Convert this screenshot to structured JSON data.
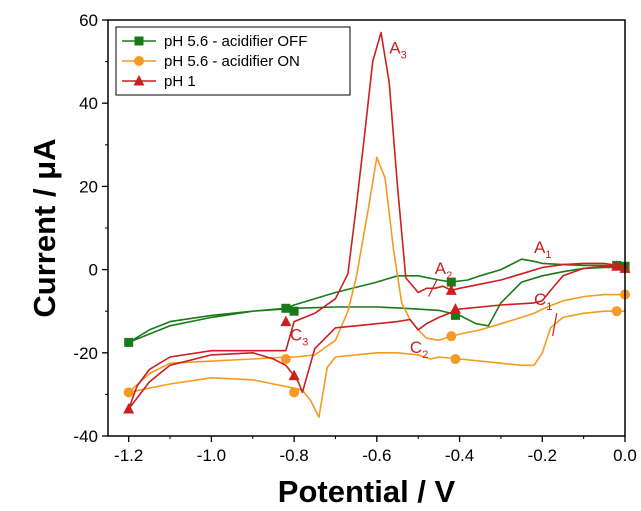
{
  "chart_data": {
    "type": "line",
    "title": "",
    "xlabel": "Potential / V",
    "ylabel": "Current / μA",
    "xlim": [
      -1.25,
      0.0
    ],
    "ylim": [
      -40,
      60
    ],
    "x_ticks": [
      -1.2,
      -1.0,
      -0.8,
      -0.6,
      -0.4,
      -0.2,
      0.0
    ],
    "x_tick_labels": [
      "-1.2",
      "-1.0",
      "-0.8",
      "-0.6",
      "-0.4",
      "-0.2",
      "0.0"
    ],
    "y_ticks": [
      -40,
      -20,
      0,
      20,
      40,
      60
    ],
    "y_tick_labels": [
      "-40",
      "-20",
      "0",
      "20",
      "40",
      "60"
    ],
    "grid": false,
    "legend_position": "top-left",
    "series": [
      {
        "name": "pH 5.6 - acidifier OFF",
        "color": "#1a7a1a",
        "marker": "square",
        "x": [
          0.0,
          -0.05,
          -0.1,
          -0.15,
          -0.2,
          -0.25,
          -0.3,
          -0.33,
          -0.36,
          -0.4,
          -0.45,
          -0.5,
          -0.55,
          -0.6,
          -0.7,
          -0.8,
          -0.9,
          -1.0,
          -1.1,
          -1.2,
          -1.15,
          -1.1,
          -1.0,
          -0.9,
          -0.82,
          -0.8,
          -0.7,
          -0.6,
          -0.55,
          -0.5,
          -0.45,
          -0.42,
          -0.38,
          -0.35,
          -0.3,
          -0.27,
          -0.25,
          -0.22,
          -0.2,
          -0.15,
          -0.1,
          -0.05,
          -0.02,
          0.0
        ],
        "y": [
          0.5,
          0.5,
          0.3,
          -0.5,
          -1.5,
          -3,
          -8,
          -13.5,
          -13,
          -11,
          -9.8,
          -9.5,
          -9.2,
          -9.0,
          -9.0,
          -9.3,
          -10,
          -11.5,
          -13.5,
          -17.5,
          -14.5,
          -12.5,
          -11,
          -10,
          -9.3,
          -8.5,
          -5.5,
          -3,
          -1.5,
          -1.5,
          -2.5,
          -3,
          -2.5,
          -1.5,
          0,
          1.5,
          2.5,
          2,
          1.5,
          1.2,
          1.0,
          1.0,
          0.8,
          0.8
        ],
        "markers_x": [
          -1.2,
          -0.82,
          -0.8,
          -0.41,
          -0.42,
          -0.02,
          0.0
        ],
        "markers_y": [
          -17.5,
          -9.3,
          -10,
          -11,
          -3,
          1,
          0.8
        ]
      },
      {
        "name": "pH 5.6 - acidifier ON",
        "color": "#f59a23",
        "marker": "circle",
        "x": [
          0.0,
          -0.05,
          -0.1,
          -0.15,
          -0.18,
          -0.2,
          -0.22,
          -0.25,
          -0.3,
          -0.4,
          -0.45,
          -0.47,
          -0.5,
          -0.55,
          -0.6,
          -0.65,
          -0.7,
          -0.72,
          -0.74,
          -0.76,
          -0.78,
          -0.8,
          -0.85,
          -0.9,
          -1.0,
          -1.1,
          -1.2,
          -1.15,
          -1.1,
          -1.0,
          -0.9,
          -0.82,
          -0.8,
          -0.75,
          -0.7,
          -0.67,
          -0.65,
          -0.62,
          -0.6,
          -0.58,
          -0.56,
          -0.54,
          -0.52,
          -0.5,
          -0.48,
          -0.45,
          -0.42,
          -0.4,
          -0.35,
          -0.3,
          -0.25,
          -0.22,
          -0.2,
          -0.15,
          -0.1,
          -0.05,
          -0.02,
          0.0
        ],
        "y": [
          -10,
          -10,
          -10.5,
          -11.5,
          -14,
          -20,
          -23,
          -23,
          -22.5,
          -21.5,
          -21,
          -21.5,
          -20.5,
          -20,
          -20,
          -20.5,
          -21,
          -23.5,
          -35.5,
          -31.5,
          -29,
          -28.5,
          -27.5,
          -26.5,
          -26,
          -27.5,
          -29.5,
          -25,
          -22.5,
          -22,
          -21.5,
          -21,
          -21,
          -20.5,
          -17,
          -10,
          -2,
          15,
          27,
          22,
          5,
          -8,
          -12,
          -14.5,
          -16.5,
          -17,
          -16,
          -15.5,
          -14.5,
          -13,
          -11.5,
          -10.5,
          -9.5,
          -7.5,
          -6.5,
          -6.0,
          -6.0,
          -6.0
        ],
        "markers_x": [
          -1.2,
          -0.82,
          -0.8,
          -0.41,
          -0.42,
          -0.02,
          0.0
        ],
        "markers_y": [
          -29.5,
          -21.5,
          -29.5,
          -21.5,
          -16,
          -10,
          -6
        ]
      },
      {
        "name": "pH 1",
        "color": "#cc1f1f",
        "marker": "triangle",
        "x": [
          0.0,
          -0.05,
          -0.1,
          -0.15,
          -0.18,
          -0.2,
          -0.22,
          -0.3,
          -0.4,
          -0.45,
          -0.48,
          -0.5,
          -0.52,
          -0.55,
          -0.6,
          -0.65,
          -0.7,
          -0.75,
          -0.78,
          -0.79,
          -0.8,
          -0.82,
          -0.85,
          -0.9,
          -1.0,
          -1.1,
          -1.15,
          -1.2,
          -1.18,
          -1.15,
          -1.1,
          -1.0,
          -0.9,
          -0.82,
          -0.8,
          -0.75,
          -0.7,
          -0.67,
          -0.65,
          -0.63,
          -0.61,
          -0.59,
          -0.57,
          -0.55,
          -0.53,
          -0.5,
          -0.48,
          -0.46,
          -0.44,
          -0.42,
          -0.4,
          -0.35,
          -0.3,
          -0.25,
          -0.2,
          -0.15,
          -0.1,
          -0.05,
          -0.02,
          0.0
        ],
        "y": [
          1.0,
          0.8,
          0.3,
          -1.5,
          -5,
          -7.5,
          -8,
          -8.5,
          -9.5,
          -11.5,
          -13,
          -14.5,
          -12,
          -12.5,
          -13,
          -13.5,
          -14,
          -19,
          -29.5,
          -27,
          -25.5,
          -23,
          -21.5,
          -20,
          -20.5,
          -23,
          -27,
          -33.5,
          -28,
          -24,
          -21,
          -19.5,
          -19.5,
          -19.5,
          -12.5,
          -10.5,
          -7,
          -1,
          15,
          32,
          50,
          57,
          45,
          20,
          -2,
          -5.5,
          -4.5,
          -4.5,
          -4,
          -5,
          -4.5,
          -3.5,
          -2.5,
          -1,
          0.5,
          1.2,
          1.5,
          1.5,
          1.0,
          0.5
        ],
        "markers_x": [
          -1.2,
          -0.82,
          -0.8,
          -0.41,
          -0.42,
          -0.02,
          0.0
        ],
        "markers_y": [
          -33.5,
          -12.5,
          -25.5,
          -9.5,
          -5,
          0.8,
          0.3
        ]
      }
    ],
    "annotations": [
      {
        "base": "A",
        "sub": "3",
        "x": -0.57,
        "y": 52,
        "color": "#cc1f1f"
      },
      {
        "base": "A",
        "sub": "2",
        "x": -0.46,
        "y": -1,
        "color": "#cc1f1f"
      },
      {
        "base": "A",
        "sub": "1",
        "x": -0.22,
        "y": 4,
        "color": "#cc1f1f"
      },
      {
        "base": "C",
        "sub": "1",
        "x": -0.22,
        "y": -8.5,
        "color": "#cc1f1f"
      },
      {
        "base": "C",
        "sub": "2",
        "x": -0.52,
        "y": -20,
        "color": "#cc1f1f"
      },
      {
        "base": "C",
        "sub": "3",
        "x": -0.81,
        "y": -17,
        "color": "#cc1f1f"
      }
    ]
  }
}
